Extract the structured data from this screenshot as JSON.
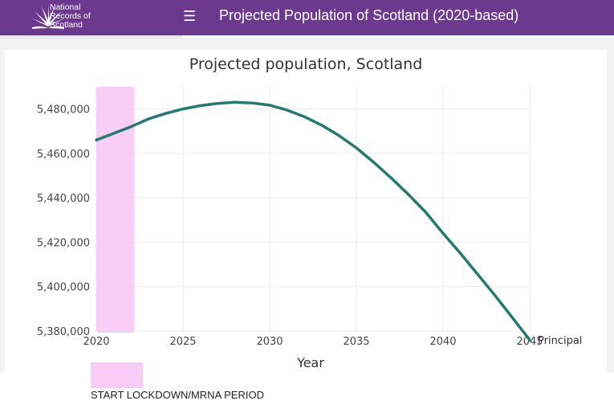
{
  "header": {
    "org_lines": [
      "National",
      "Records of",
      "Scotland"
    ],
    "menu_icon": "hamburger-menu-icon",
    "title": "Projected Population of Scotland (2020-based)",
    "background": "#6b3a8e"
  },
  "chart_data": {
    "type": "line",
    "title": "Projected population, Scotland",
    "xlabel": "Year",
    "ylabel": "",
    "xlim": [
      2020,
      2045
    ],
    "ylim": [
      5380000,
      5490000
    ],
    "x_ticks": [
      "2020",
      "2025",
      "2030",
      "2035",
      "2040",
      "2045"
    ],
    "y_ticks": [
      "5,380,000",
      "5,400,000",
      "5,420,000",
      "5,440,000",
      "5,460,000",
      "5,480,000"
    ],
    "x_tick_values": [
      2020,
      2025,
      2030,
      2035,
      2040,
      2045
    ],
    "y_tick_values": [
      5380000,
      5400000,
      5420000,
      5440000,
      5460000,
      5480000
    ],
    "grid": true,
    "series": [
      {
        "name": "Principal",
        "color": "#247a6e",
        "x": [
          2020,
          2021,
          2022,
          2023,
          2024,
          2025,
          2026,
          2027,
          2028,
          2029,
          2030,
          2031,
          2032,
          2033,
          2034,
          2035,
          2036,
          2037,
          2038,
          2039,
          2040,
          2041,
          2042,
          2043,
          2044,
          2045
        ],
        "y": [
          5466000,
          5469000,
          5472000,
          5475500,
          5478000,
          5480000,
          5481500,
          5482500,
          5483000,
          5482700,
          5481700,
          5479500,
          5476500,
          5472700,
          5468000,
          5462500,
          5456000,
          5449000,
          5441500,
          5433500,
          5424000,
          5415000,
          5405500,
          5396000,
          5386000,
          5376000
        ]
      }
    ],
    "highlight": {
      "label": "START LOCKDOWN/MRNA PERIOD",
      "x_range": [
        2020,
        2022.2
      ],
      "color": "#f7c6f5"
    }
  }
}
